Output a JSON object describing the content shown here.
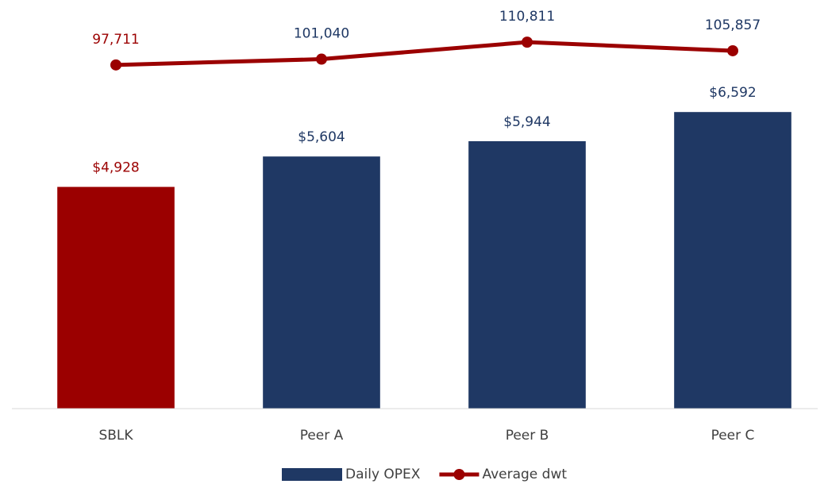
{
  "chart_data": {
    "type": "bar",
    "categories": [
      "SBLK",
      "Peer A",
      "Peer B",
      "Peer C"
    ],
    "series": [
      {
        "name": "Daily OPEX",
        "type": "bar",
        "color": "#1f3864",
        "colors": [
          "#9b0000",
          "#1f3864",
          "#1f3864",
          "#1f3864"
        ],
        "values": [
          4928,
          5604,
          5944,
          6592
        ],
        "value_labels": [
          "$4,928",
          "$5,604",
          "$5,944",
          "$6,592"
        ]
      },
      {
        "name": "Average dwt",
        "type": "line",
        "axis": "y2",
        "color": "#9b0000",
        "values": [
          97711,
          101040,
          110811,
          105857
        ],
        "value_labels": [
          "97,711",
          "101,040",
          "110,811",
          "105,857"
        ]
      }
    ],
    "ylim": [
      0,
      8500
    ],
    "y2lim": [
      -100000,
      120000
    ],
    "legend": "bottom"
  }
}
